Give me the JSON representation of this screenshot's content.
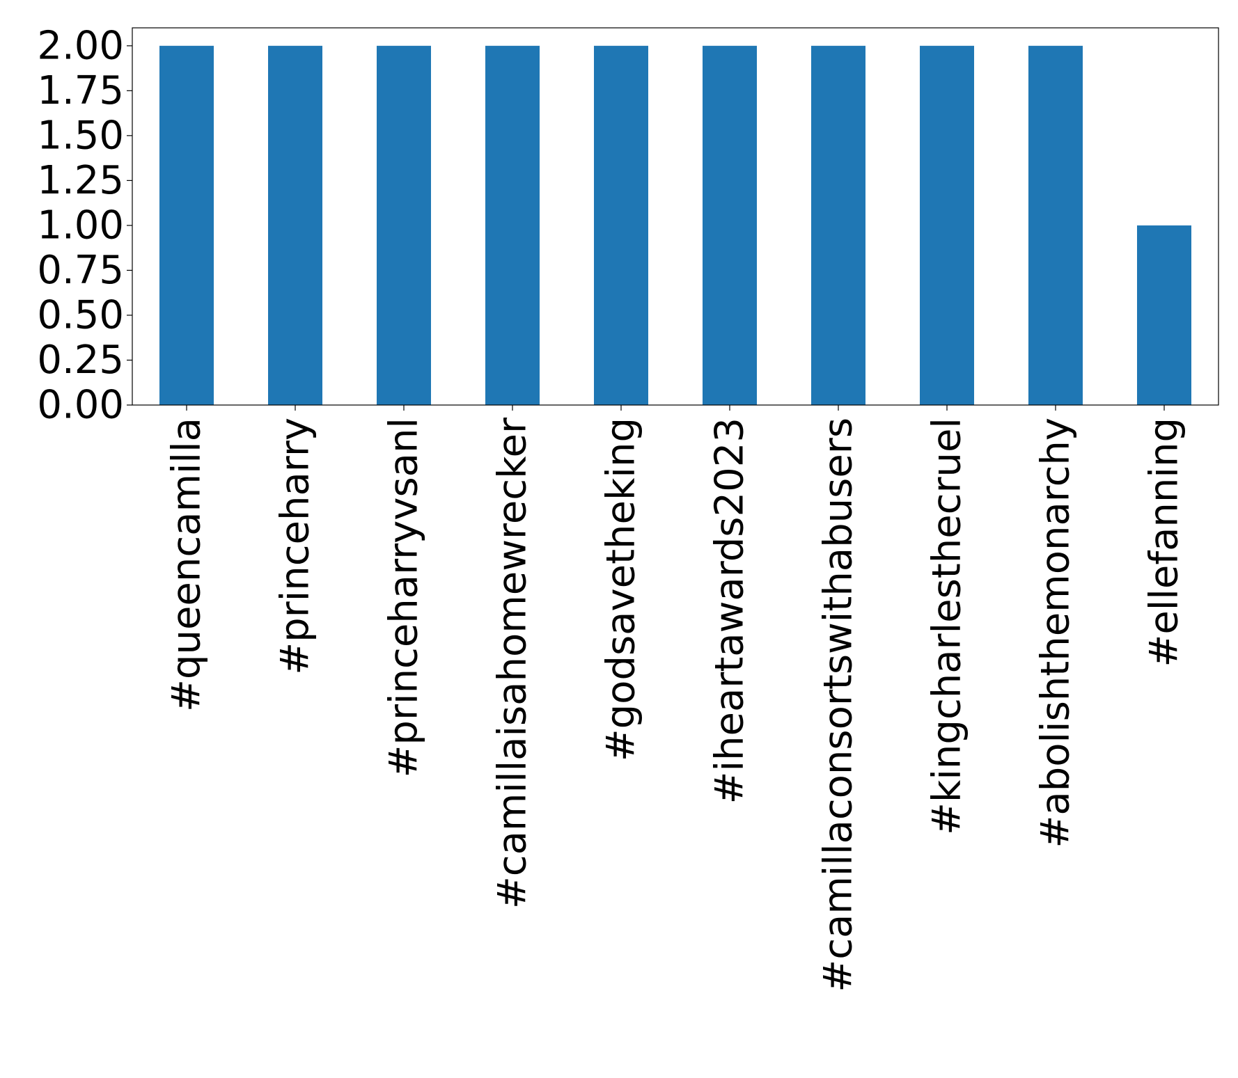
{
  "chart_data": {
    "type": "bar",
    "title": "",
    "xlabel": "",
    "ylabel": "",
    "categories": [
      "#queencamilla",
      "#princeharry",
      "#princeharryvsanl",
      "#camillaisahomewrecker",
      "#godsavetheking",
      "#iheartawards2023",
      "#camillaconsortswithabusers",
      "#kingcharlesthecruel",
      "#abolishthemonarchy",
      "#ellefanning"
    ],
    "values": [
      2,
      2,
      2,
      2,
      2,
      2,
      2,
      2,
      2,
      1
    ],
    "ylim": [
      0,
      2.1
    ],
    "yticks": [
      "0.00",
      "0.25",
      "0.50",
      "0.75",
      "1.00",
      "1.25",
      "1.50",
      "1.75",
      "2.00"
    ],
    "ytick_values": [
      0,
      0.25,
      0.5,
      0.75,
      1.0,
      1.25,
      1.5,
      1.75,
      2.0
    ],
    "bar_color": "#1f77b4",
    "grid": false,
    "legend": "none"
  }
}
